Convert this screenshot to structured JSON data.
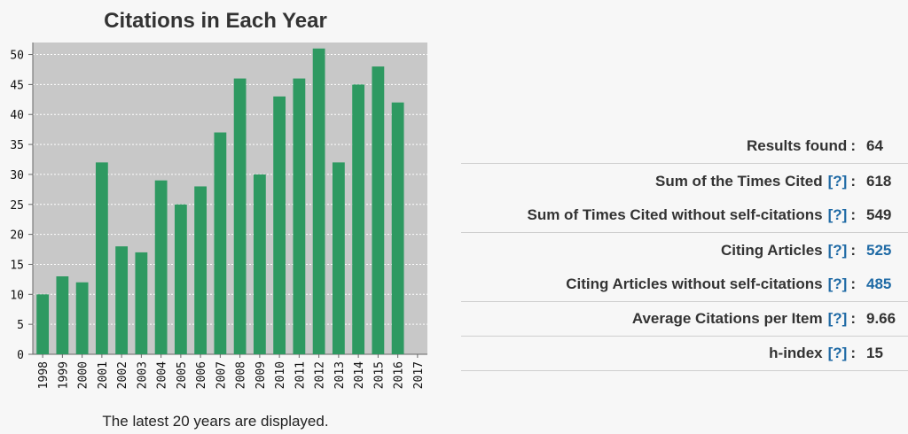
{
  "chart_data": {
    "type": "bar",
    "title": "Citations in Each Year",
    "caption": "The latest 20 years are displayed.",
    "categories": [
      "1998",
      "1999",
      "2000",
      "2001",
      "2002",
      "2003",
      "2004",
      "2005",
      "2006",
      "2007",
      "2008",
      "2009",
      "2010",
      "2011",
      "2012",
      "2013",
      "2014",
      "2015",
      "2016",
      "2017"
    ],
    "values": [
      10,
      13,
      12,
      32,
      18,
      17,
      29,
      25,
      28,
      37,
      46,
      30,
      43,
      46,
      51,
      32,
      45,
      48,
      42,
      0
    ],
    "ylim": [
      0,
      52
    ],
    "yticks": [
      0,
      5,
      10,
      15,
      20,
      25,
      30,
      35,
      40,
      45,
      50
    ],
    "bar_color": "#2e9961",
    "plot_bg": "#c8c8c8",
    "grid": true
  },
  "stats": [
    {
      "label": "Results found",
      "help": "",
      "value": "64",
      "link": false
    },
    {
      "label": "Sum of the Times Cited",
      "help": "[?]",
      "value": "618",
      "link": false
    },
    {
      "label": "Sum of Times Cited without self-citations",
      "help": "[?]",
      "value": "549",
      "link": false
    },
    {
      "label": "Citing Articles",
      "help": "[?]",
      "value": "525",
      "link": true
    },
    {
      "label": "Citing Articles without self-citations",
      "help": "[?]",
      "value": "485",
      "link": true
    },
    {
      "label": "Average Citations per Item",
      "help": "[?]",
      "value": "9.66",
      "link": false
    },
    {
      "label": "h-index",
      "help": "[?]",
      "value": "15",
      "link": false
    }
  ],
  "colors": {
    "link": "#1f6aa5",
    "text": "#333333"
  }
}
